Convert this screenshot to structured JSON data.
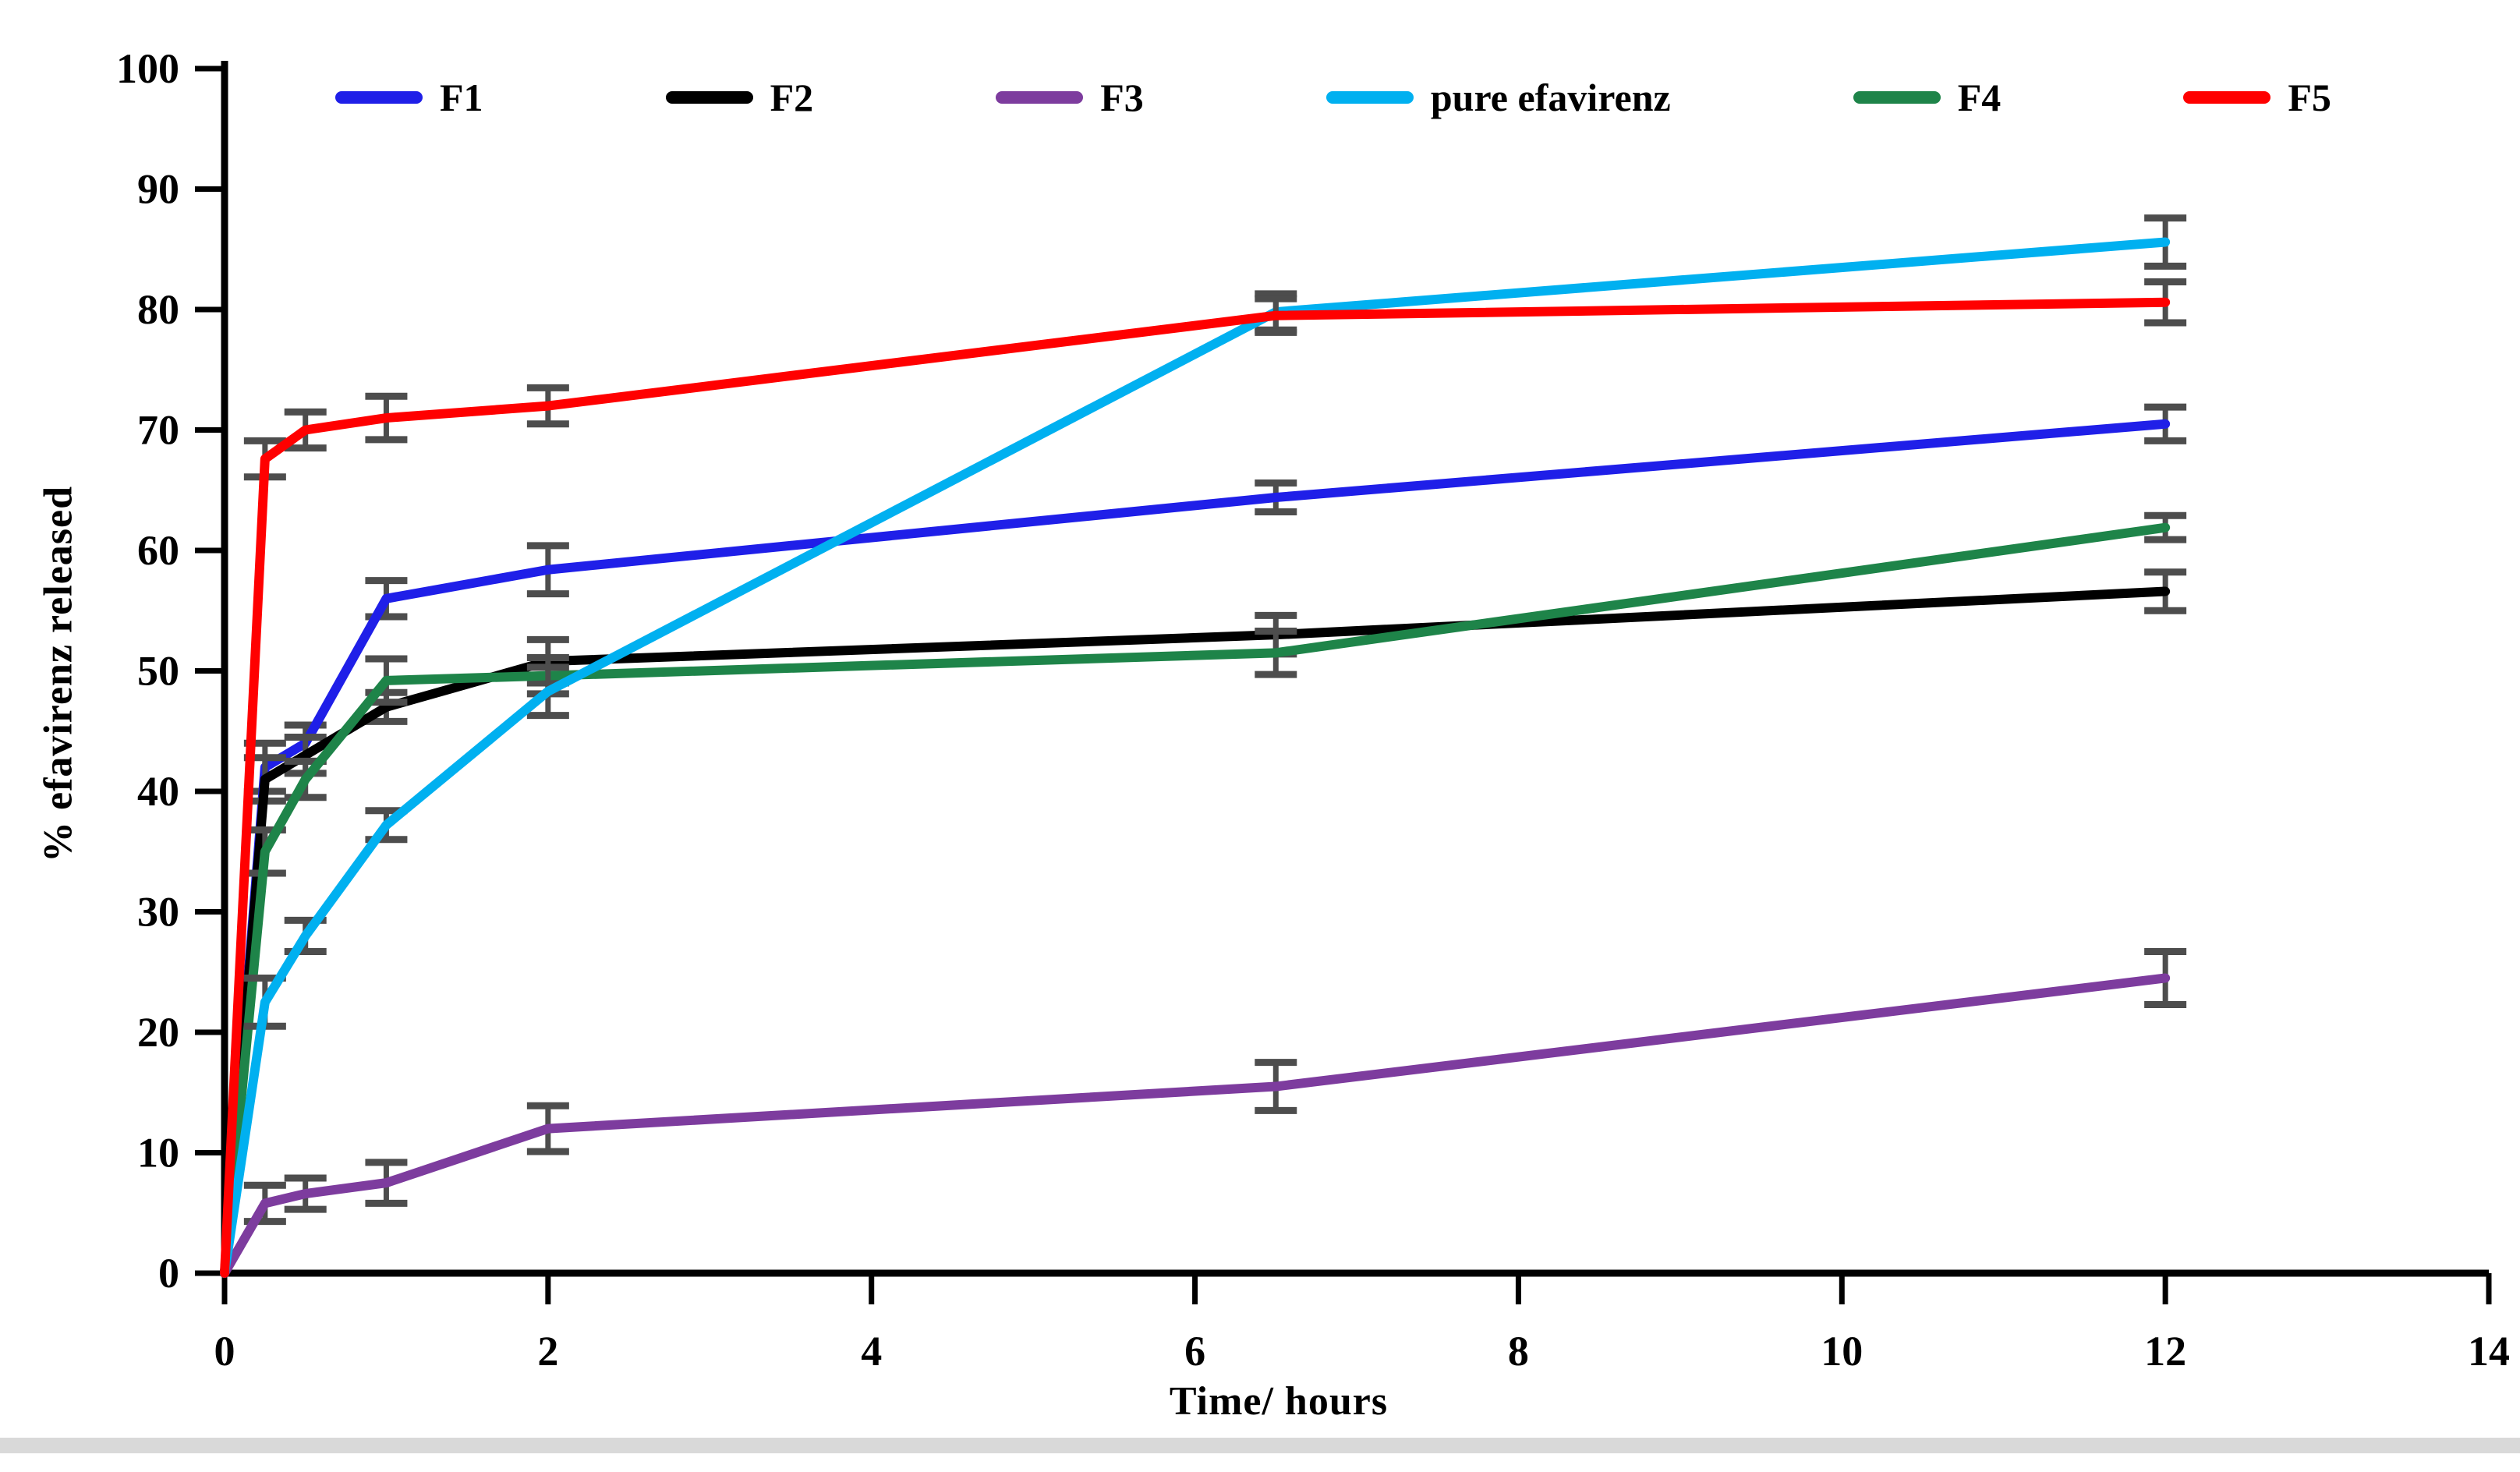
{
  "chart_data": {
    "type": "line",
    "title": "",
    "xlabel": "Time/ hours",
    "ylabel": "% efavirenz released",
    "xlim": [
      0,
      14
    ],
    "ylim": [
      0,
      100
    ],
    "x_ticks": [
      0,
      2,
      4,
      6,
      8,
      10,
      12,
      14
    ],
    "y_ticks": [
      0,
      10,
      20,
      30,
      40,
      50,
      60,
      70,
      80,
      90,
      100
    ],
    "grid": false,
    "legend_position": "top",
    "axis_color": "#000000",
    "error_bar_color": "#4d4d4d",
    "x": [
      0,
      0.25,
      0.5,
      1,
      2,
      6.5,
      12
    ],
    "series": [
      {
        "name": "F1",
        "color": "#1f1fe8",
        "values": [
          0,
          42,
          44,
          56,
          58.4,
          64.4,
          70.5
        ],
        "errors": [
          0,
          2,
          1.5,
          1.5,
          2,
          1.2,
          1.4
        ]
      },
      {
        "name": "F2",
        "color": "#000000",
        "values": [
          0,
          41,
          43,
          47,
          50.8,
          53,
          56.6
        ],
        "errors": [
          0,
          1.8,
          1.5,
          1.2,
          1.8,
          1.6,
          1.6
        ]
      },
      {
        "name": "F3",
        "color": "#7d3c9e",
        "values": [
          0,
          5.8,
          6.6,
          7.5,
          12,
          15.5,
          24.5
        ],
        "errors": [
          0,
          1.5,
          1.3,
          1.7,
          1.9,
          2,
          2.2
        ]
      },
      {
        "name": "pure efavirenz",
        "color": "#00b0f0",
        "values": [
          0,
          22.5,
          28,
          37.2,
          48.3,
          79.8,
          85.6
        ],
        "errors": [
          0,
          2,
          1.3,
          1.2,
          2,
          1.5,
          2
        ]
      },
      {
        "name": "F4",
        "color": "#1e8449",
        "values": [
          0,
          35,
          41,
          49.2,
          49.6,
          51.5,
          61.9
        ],
        "errors": [
          0,
          1.8,
          1.5,
          1.8,
          1.5,
          1.8,
          1
        ]
      },
      {
        "name": "F5",
        "color": "#ff0000",
        "values": [
          0,
          67.6,
          70,
          71,
          72,
          79.5,
          80.6
        ],
        "errors": [
          0,
          1.5,
          1.5,
          1.8,
          1.5,
          1.4,
          1.7
        ]
      }
    ],
    "draw_order": [
      "F1",
      "F2",
      "F4",
      "F3",
      "pure efavirenz",
      "F5"
    ]
  }
}
